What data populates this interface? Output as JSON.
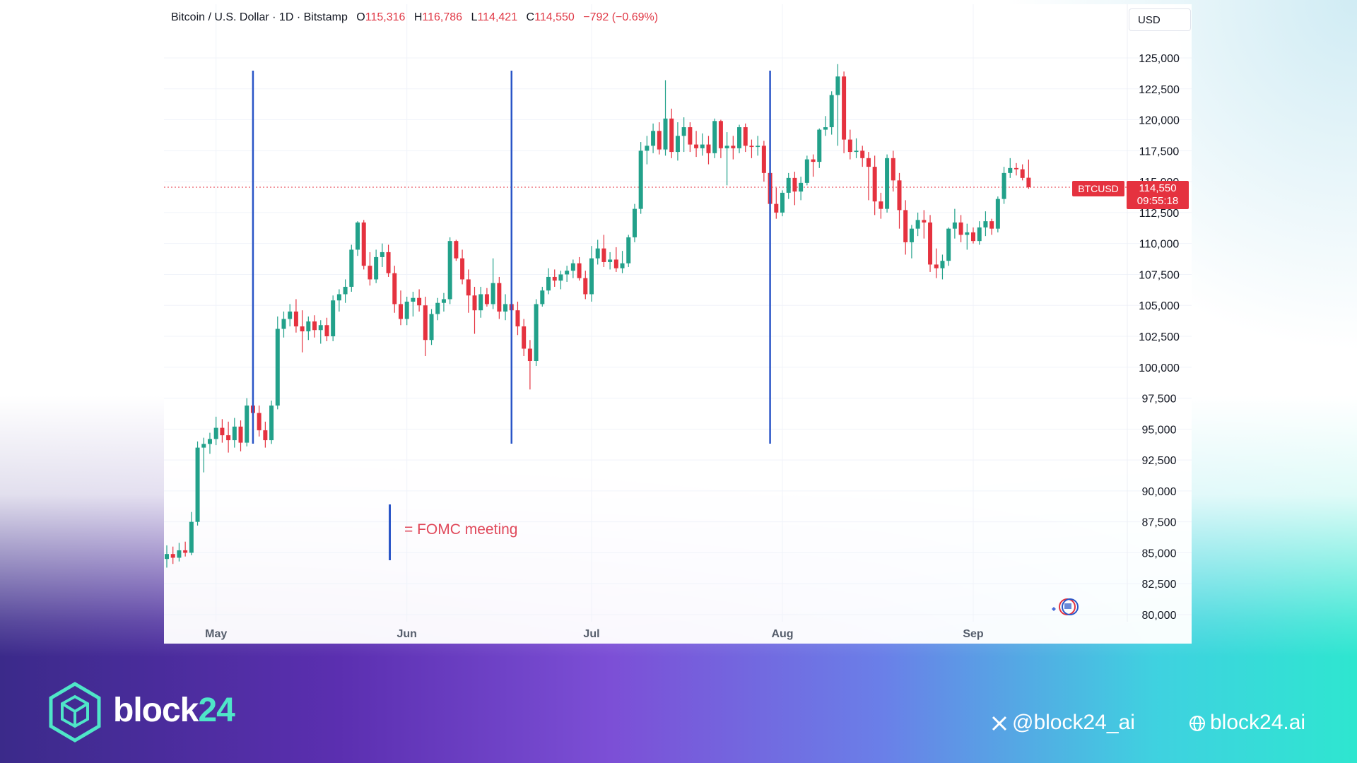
{
  "header": {
    "symbol": "Bitcoin / U.S. Dollar · 1D · Bitstamp",
    "open_label": "O",
    "open": "115,316",
    "high_label": "H",
    "high": "116,786",
    "low_label": "L",
    "low": "114,421",
    "close_label": "C",
    "close": "114,550",
    "change": "−792 (−0.69%)"
  },
  "currency": "USD",
  "price_tag": {
    "symbol": "BTCUSD",
    "value": "114,550",
    "countdown": "09:55:18"
  },
  "legend": {
    "text": "= FOMC meeting"
  },
  "brand": {
    "name_main": "block",
    "name_accent": "24"
  },
  "social": {
    "x_handle": "@block24_ai",
    "website": "block24.ai"
  },
  "colors": {
    "up": "#22a18a",
    "down": "#e5323f",
    "fomc": "#2a55c7",
    "last_price_line": "#e5323f"
  },
  "chart_data": {
    "type": "candlestick",
    "ylim": [
      80000,
      125000
    ],
    "y_ticks": [
      "125,000",
      "122,500",
      "120,000",
      "117,500",
      "115,000",
      "112,500",
      "110,000",
      "107,500",
      "105,000",
      "102,500",
      "100,000",
      "97,500",
      "95,000",
      "92,500",
      "90,000",
      "87,500",
      "85,000",
      "82,500",
      "80,000"
    ],
    "y_tick_values": [
      125000,
      122500,
      120000,
      117500,
      115000,
      112500,
      110000,
      107500,
      105000,
      102500,
      100000,
      97500,
      95000,
      92500,
      90000,
      87500,
      85000,
      82500,
      80000
    ],
    "x_ticks": [
      {
        "label": "May",
        "day": 8
      },
      {
        "label": "Jun",
        "day": 39
      },
      {
        "label": "Jul",
        "day": 69
      },
      {
        "label": "Aug",
        "day": 100
      },
      {
        "label": "Sep",
        "day": 131
      }
    ],
    "fomc_days": [
      14,
      56,
      98
    ],
    "last_price": 114550,
    "candles": [
      {
        "o": 84500,
        "h": 85600,
        "l": 83800,
        "c": 84900
      },
      {
        "o": 84900,
        "h": 85500,
        "l": 84100,
        "c": 84600
      },
      {
        "o": 84600,
        "h": 85800,
        "l": 84300,
        "c": 85200
      },
      {
        "o": 85200,
        "h": 85900,
        "l": 84700,
        "c": 85000
      },
      {
        "o": 85000,
        "h": 88300,
        "l": 84800,
        "c": 87500
      },
      {
        "o": 87500,
        "h": 94000,
        "l": 87200,
        "c": 93500
      },
      {
        "o": 93500,
        "h": 94300,
        "l": 91500,
        "c": 93800
      },
      {
        "o": 93800,
        "h": 94700,
        "l": 93000,
        "c": 94200
      },
      {
        "o": 94200,
        "h": 96000,
        "l": 93700,
        "c": 95100
      },
      {
        "o": 95100,
        "h": 95800,
        "l": 93900,
        "c": 94500
      },
      {
        "o": 94500,
        "h": 95600,
        "l": 93100,
        "c": 94100
      },
      {
        "o": 94100,
        "h": 95900,
        "l": 93500,
        "c": 95200
      },
      {
        "o": 95200,
        "h": 95700,
        "l": 93200,
        "c": 93900
      },
      {
        "o": 93900,
        "h": 97500,
        "l": 93600,
        "c": 96900
      },
      {
        "o": 96900,
        "h": 97800,
        "l": 95900,
        "c": 96300
      },
      {
        "o": 96300,
        "h": 96900,
        "l": 94400,
        "c": 94900
      },
      {
        "o": 94900,
        "h": 95600,
        "l": 93500,
        "c": 94100
      },
      {
        "o": 94100,
        "h": 97300,
        "l": 93800,
        "c": 96900
      },
      {
        "o": 96900,
        "h": 104100,
        "l": 96600,
        "c": 103100
      },
      {
        "o": 103100,
        "h": 104500,
        "l": 102400,
        "c": 103900
      },
      {
        "o": 103900,
        "h": 105100,
        "l": 103300,
        "c": 104500
      },
      {
        "o": 104500,
        "h": 105500,
        "l": 102800,
        "c": 103300
      },
      {
        "o": 103300,
        "h": 104600,
        "l": 101200,
        "c": 102900
      },
      {
        "o": 102900,
        "h": 104100,
        "l": 102200,
        "c": 103700
      },
      {
        "o": 103700,
        "h": 104200,
        "l": 102400,
        "c": 103000
      },
      {
        "o": 103000,
        "h": 103800,
        "l": 101900,
        "c": 103400
      },
      {
        "o": 103400,
        "h": 104000,
        "l": 102100,
        "c": 102500
      },
      {
        "o": 102500,
        "h": 105800,
        "l": 102100,
        "c": 105400
      },
      {
        "o": 105400,
        "h": 106300,
        "l": 104500,
        "c": 105900
      },
      {
        "o": 105900,
        "h": 107100,
        "l": 105200,
        "c": 106500
      },
      {
        "o": 106500,
        "h": 109900,
        "l": 106100,
        "c": 109500
      },
      {
        "o": 109500,
        "h": 111800,
        "l": 109000,
        "c": 111700
      },
      {
        "o": 111700,
        "h": 111900,
        "l": 107900,
        "c": 108200
      },
      {
        "o": 108200,
        "h": 109300,
        "l": 106600,
        "c": 107100
      },
      {
        "o": 107100,
        "h": 109500,
        "l": 106800,
        "c": 108900
      },
      {
        "o": 108900,
        "h": 110000,
        "l": 108100,
        "c": 109300
      },
      {
        "o": 109300,
        "h": 109900,
        "l": 107300,
        "c": 107600
      },
      {
        "o": 107600,
        "h": 108200,
        "l": 104400,
        "c": 105100
      },
      {
        "o": 105100,
        "h": 106200,
        "l": 103400,
        "c": 103900
      },
      {
        "o": 103900,
        "h": 105700,
        "l": 103400,
        "c": 105300
      },
      {
        "o": 105300,
        "h": 106100,
        "l": 104100,
        "c": 105600
      },
      {
        "o": 105600,
        "h": 106300,
        "l": 104500,
        "c": 105000
      },
      {
        "o": 105000,
        "h": 105700,
        "l": 100900,
        "c": 102200
      },
      {
        "o": 102200,
        "h": 104700,
        "l": 101800,
        "c": 104300
      },
      {
        "o": 104300,
        "h": 105600,
        "l": 103800,
        "c": 105200
      },
      {
        "o": 105200,
        "h": 106000,
        "l": 104500,
        "c": 105500
      },
      {
        "o": 105500,
        "h": 110500,
        "l": 105100,
        "c": 110200
      },
      {
        "o": 110200,
        "h": 110300,
        "l": 108600,
        "c": 108800
      },
      {
        "o": 108800,
        "h": 109500,
        "l": 106700,
        "c": 107100
      },
      {
        "o": 107100,
        "h": 107900,
        "l": 104400,
        "c": 105800
      },
      {
        "o": 105800,
        "h": 106500,
        "l": 102700,
        "c": 104600
      },
      {
        "o": 104600,
        "h": 106500,
        "l": 104000,
        "c": 105900
      },
      {
        "o": 105900,
        "h": 106400,
        "l": 104900,
        "c": 105100
      },
      {
        "o": 105100,
        "h": 108800,
        "l": 104700,
        "c": 106800
      },
      {
        "o": 106800,
        "h": 107300,
        "l": 103900,
        "c": 104500
      },
      {
        "o": 104500,
        "h": 105900,
        "l": 103800,
        "c": 105100
      },
      {
        "o": 105100,
        "h": 105800,
        "l": 103800,
        "c": 104600
      },
      {
        "o": 104600,
        "h": 105300,
        "l": 102600,
        "c": 103300
      },
      {
        "o": 103300,
        "h": 103900,
        "l": 100900,
        "c": 101500
      },
      {
        "o": 101500,
        "h": 102200,
        "l": 98200,
        "c": 100500
      },
      {
        "o": 100500,
        "h": 105500,
        "l": 100100,
        "c": 105100
      },
      {
        "o": 105100,
        "h": 106500,
        "l": 104900,
        "c": 106200
      },
      {
        "o": 106200,
        "h": 108000,
        "l": 105900,
        "c": 107300
      },
      {
        "o": 107300,
        "h": 107900,
        "l": 106500,
        "c": 107000
      },
      {
        "o": 107000,
        "h": 107800,
        "l": 106300,
        "c": 107500
      },
      {
        "o": 107500,
        "h": 108200,
        "l": 106900,
        "c": 107800
      },
      {
        "o": 107800,
        "h": 108700,
        "l": 107200,
        "c": 108400
      },
      {
        "o": 108400,
        "h": 108900,
        "l": 107000,
        "c": 107200
      },
      {
        "o": 107200,
        "h": 107800,
        "l": 105500,
        "c": 105900
      },
      {
        "o": 105900,
        "h": 109800,
        "l": 105300,
        "c": 108800
      },
      {
        "o": 108800,
        "h": 110300,
        "l": 108300,
        "c": 109600
      },
      {
        "o": 109600,
        "h": 110700,
        "l": 108100,
        "c": 108500
      },
      {
        "o": 108500,
        "h": 109300,
        "l": 107900,
        "c": 108700
      },
      {
        "o": 108700,
        "h": 109700,
        "l": 107700,
        "c": 108000
      },
      {
        "o": 108000,
        "h": 109400,
        "l": 107600,
        "c": 108400
      },
      {
        "o": 108400,
        "h": 110700,
        "l": 108100,
        "c": 110500
      },
      {
        "o": 110500,
        "h": 113200,
        "l": 110100,
        "c": 112800
      },
      {
        "o": 112800,
        "h": 118200,
        "l": 112400,
        "c": 117500
      },
      {
        "o": 117500,
        "h": 118700,
        "l": 116400,
        "c": 117900
      },
      {
        "o": 117900,
        "h": 119700,
        "l": 117300,
        "c": 119100
      },
      {
        "o": 119100,
        "h": 119800,
        "l": 117200,
        "c": 117600
      },
      {
        "o": 117600,
        "h": 123200,
        "l": 117100,
        "c": 120100
      },
      {
        "o": 120100,
        "h": 120900,
        "l": 116900,
        "c": 117400
      },
      {
        "o": 117400,
        "h": 119800,
        "l": 116700,
        "c": 118700
      },
      {
        "o": 118700,
        "h": 120200,
        "l": 117400,
        "c": 119400
      },
      {
        "o": 119400,
        "h": 119800,
        "l": 117400,
        "c": 118000
      },
      {
        "o": 118000,
        "h": 119100,
        "l": 117000,
        "c": 117700
      },
      {
        "o": 117700,
        "h": 118900,
        "l": 117100,
        "c": 118000
      },
      {
        "o": 118000,
        "h": 118700,
        "l": 116400,
        "c": 117300
      },
      {
        "o": 117300,
        "h": 120100,
        "l": 116900,
        "c": 119900
      },
      {
        "o": 119900,
        "h": 120000,
        "l": 116900,
        "c": 117700
      },
      {
        "o": 117700,
        "h": 119000,
        "l": 114700,
        "c": 117900
      },
      {
        "o": 117900,
        "h": 118700,
        "l": 116800,
        "c": 117700
      },
      {
        "o": 117700,
        "h": 119600,
        "l": 117300,
        "c": 119400
      },
      {
        "o": 119400,
        "h": 119700,
        "l": 117400,
        "c": 117900
      },
      {
        "o": 117900,
        "h": 118400,
        "l": 116900,
        "c": 117800
      },
      {
        "o": 117800,
        "h": 118700,
        "l": 117100,
        "c": 117900
      },
      {
        "o": 117900,
        "h": 118300,
        "l": 115000,
        "c": 115700
      },
      {
        "o": 115700,
        "h": 116100,
        "l": 112400,
        "c": 113200
      },
      {
        "o": 113200,
        "h": 114500,
        "l": 112000,
        "c": 112500
      },
      {
        "o": 112500,
        "h": 114300,
        "l": 112200,
        "c": 114100
      },
      {
        "o": 114100,
        "h": 115700,
        "l": 113600,
        "c": 115300
      },
      {
        "o": 115300,
        "h": 115800,
        "l": 113100,
        "c": 114200
      },
      {
        "o": 114200,
        "h": 115400,
        "l": 113500,
        "c": 114900
      },
      {
        "o": 114900,
        "h": 117100,
        "l": 114700,
        "c": 116800
      },
      {
        "o": 116800,
        "h": 117200,
        "l": 115400,
        "c": 116600
      },
      {
        "o": 116600,
        "h": 119300,
        "l": 116100,
        "c": 119200
      },
      {
        "o": 119200,
        "h": 120300,
        "l": 118700,
        "c": 119400
      },
      {
        "o": 119400,
        "h": 122300,
        "l": 118800,
        "c": 122000
      },
      {
        "o": 122000,
        "h": 124500,
        "l": 117900,
        "c": 123500
      },
      {
        "o": 123500,
        "h": 123900,
        "l": 117300,
        "c": 118400
      },
      {
        "o": 118400,
        "h": 119200,
        "l": 116800,
        "c": 117400
      },
      {
        "o": 117400,
        "h": 118500,
        "l": 116900,
        "c": 117500
      },
      {
        "o": 117500,
        "h": 117900,
        "l": 116200,
        "c": 116900
      },
      {
        "o": 116900,
        "h": 117400,
        "l": 113500,
        "c": 116200
      },
      {
        "o": 116200,
        "h": 117100,
        "l": 112300,
        "c": 113400
      },
      {
        "o": 113400,
        "h": 114100,
        "l": 112000,
        "c": 112800
      },
      {
        "o": 112800,
        "h": 117200,
        "l": 112500,
        "c": 116900
      },
      {
        "o": 116900,
        "h": 117500,
        "l": 114200,
        "c": 115100
      },
      {
        "o": 115100,
        "h": 115700,
        "l": 111200,
        "c": 112700
      },
      {
        "o": 112700,
        "h": 113500,
        "l": 109100,
        "c": 110100
      },
      {
        "o": 110100,
        "h": 111500,
        "l": 108800,
        "c": 111200
      },
      {
        "o": 111200,
        "h": 112500,
        "l": 110600,
        "c": 111900
      },
      {
        "o": 111900,
        "h": 112700,
        "l": 110400,
        "c": 111700
      },
      {
        "o": 111700,
        "h": 112300,
        "l": 107700,
        "c": 108300
      },
      {
        "o": 108300,
        "h": 109600,
        "l": 107200,
        "c": 108000
      },
      {
        "o": 108000,
        "h": 109100,
        "l": 107100,
        "c": 108600
      },
      {
        "o": 108600,
        "h": 111300,
        "l": 108200,
        "c": 111200
      },
      {
        "o": 111200,
        "h": 112800,
        "l": 110400,
        "c": 111700
      },
      {
        "o": 111700,
        "h": 112300,
        "l": 110100,
        "c": 110700
      },
      {
        "o": 110700,
        "h": 111600,
        "l": 109500,
        "c": 110900
      },
      {
        "o": 110900,
        "h": 111300,
        "l": 110000,
        "c": 110200
      },
      {
        "o": 110200,
        "h": 111800,
        "l": 109900,
        "c": 111300
      },
      {
        "o": 111300,
        "h": 112600,
        "l": 110600,
        "c": 111800
      },
      {
        "o": 111800,
        "h": 112000,
        "l": 110700,
        "c": 111200
      },
      {
        "o": 111200,
        "h": 113800,
        "l": 110900,
        "c": 113600
      },
      {
        "o": 113600,
        "h": 116200,
        "l": 113200,
        "c": 115700
      },
      {
        "o": 115700,
        "h": 116900,
        "l": 115300,
        "c": 116100
      },
      {
        "o": 116100,
        "h": 116500,
        "l": 115500,
        "c": 116000
      },
      {
        "o": 116000,
        "h": 116400,
        "l": 115100,
        "c": 115300
      },
      {
        "o": 115316,
        "h": 116786,
        "l": 114421,
        "c": 114550
      }
    ]
  }
}
